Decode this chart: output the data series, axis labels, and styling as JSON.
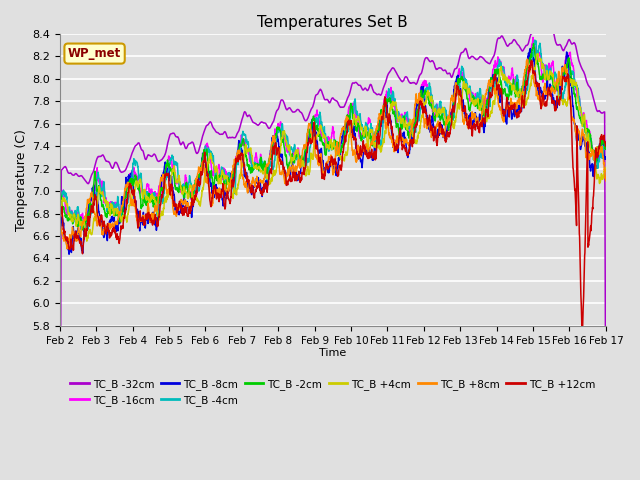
{
  "title": "Temperatures Set B",
  "xlabel": "Time",
  "ylabel": "Temperature (C)",
  "ylim": [
    5.8,
    8.4
  ],
  "xlim": [
    0,
    15
  ],
  "background_color": "#e0e0e0",
  "plot_bg_color": "#e0e0e0",
  "grid_color": "#ffffff",
  "series_order": [
    "TC_B -32cm",
    "TC_B -16cm",
    "TC_B -8cm",
    "TC_B -4cm",
    "TC_B -2cm",
    "TC_B +4cm",
    "TC_B +8cm",
    "TC_B +12cm"
  ],
  "series": {
    "TC_B -32cm": {
      "color": "#aa00cc",
      "lw": 1.1
    },
    "TC_B -16cm": {
      "color": "#ff00ff",
      "lw": 1.1
    },
    "TC_B -8cm": {
      "color": "#0000dd",
      "lw": 1.1
    },
    "TC_B -4cm": {
      "color": "#00bbbb",
      "lw": 1.1
    },
    "TC_B -2cm": {
      "color": "#00cc00",
      "lw": 1.1
    },
    "TC_B +4cm": {
      "color": "#cccc00",
      "lw": 1.1
    },
    "TC_B +8cm": {
      "color": "#ff8800",
      "lw": 1.1
    },
    "TC_B +12cm": {
      "color": "#cc0000",
      "lw": 1.1
    }
  },
  "annotation_text": "WP_met",
  "annotation_color": "#8b0000",
  "annotation_bg": "#ffffcc",
  "xtick_labels": [
    "Feb 2",
    "Feb 3",
    "Feb 4",
    "Feb 5",
    "Feb 6",
    "Feb 7",
    "Feb 8",
    "Feb 9",
    "Feb 10",
    "Feb 11",
    "Feb 12",
    "Feb 13",
    "Feb 14",
    "Feb 15",
    "Feb 16",
    "Feb 17"
  ],
  "xtick_positions": [
    0,
    1,
    2,
    3,
    4,
    5,
    6,
    7,
    8,
    9,
    10,
    11,
    12,
    13,
    14,
    15
  ],
  "ytick_labels": [
    "5.8",
    "6.0",
    "6.2",
    "6.4",
    "6.6",
    "6.8",
    "7.0",
    "7.2",
    "7.4",
    "7.6",
    "7.8",
    "8.0",
    "8.2",
    "8.4"
  ],
  "ytick_positions": [
    5.8,
    6.0,
    6.2,
    6.4,
    6.6,
    6.8,
    7.0,
    7.2,
    7.4,
    7.6,
    7.8,
    8.0,
    8.2,
    8.4
  ],
  "legend_names": [
    "TC_B -32cm",
    "TC_B -16cm",
    "TC_B -8cm",
    "TC_B -4cm",
    "TC_B -2cm",
    "TC_B +4cm",
    "TC_B +8cm",
    "TC_B +12cm"
  ]
}
